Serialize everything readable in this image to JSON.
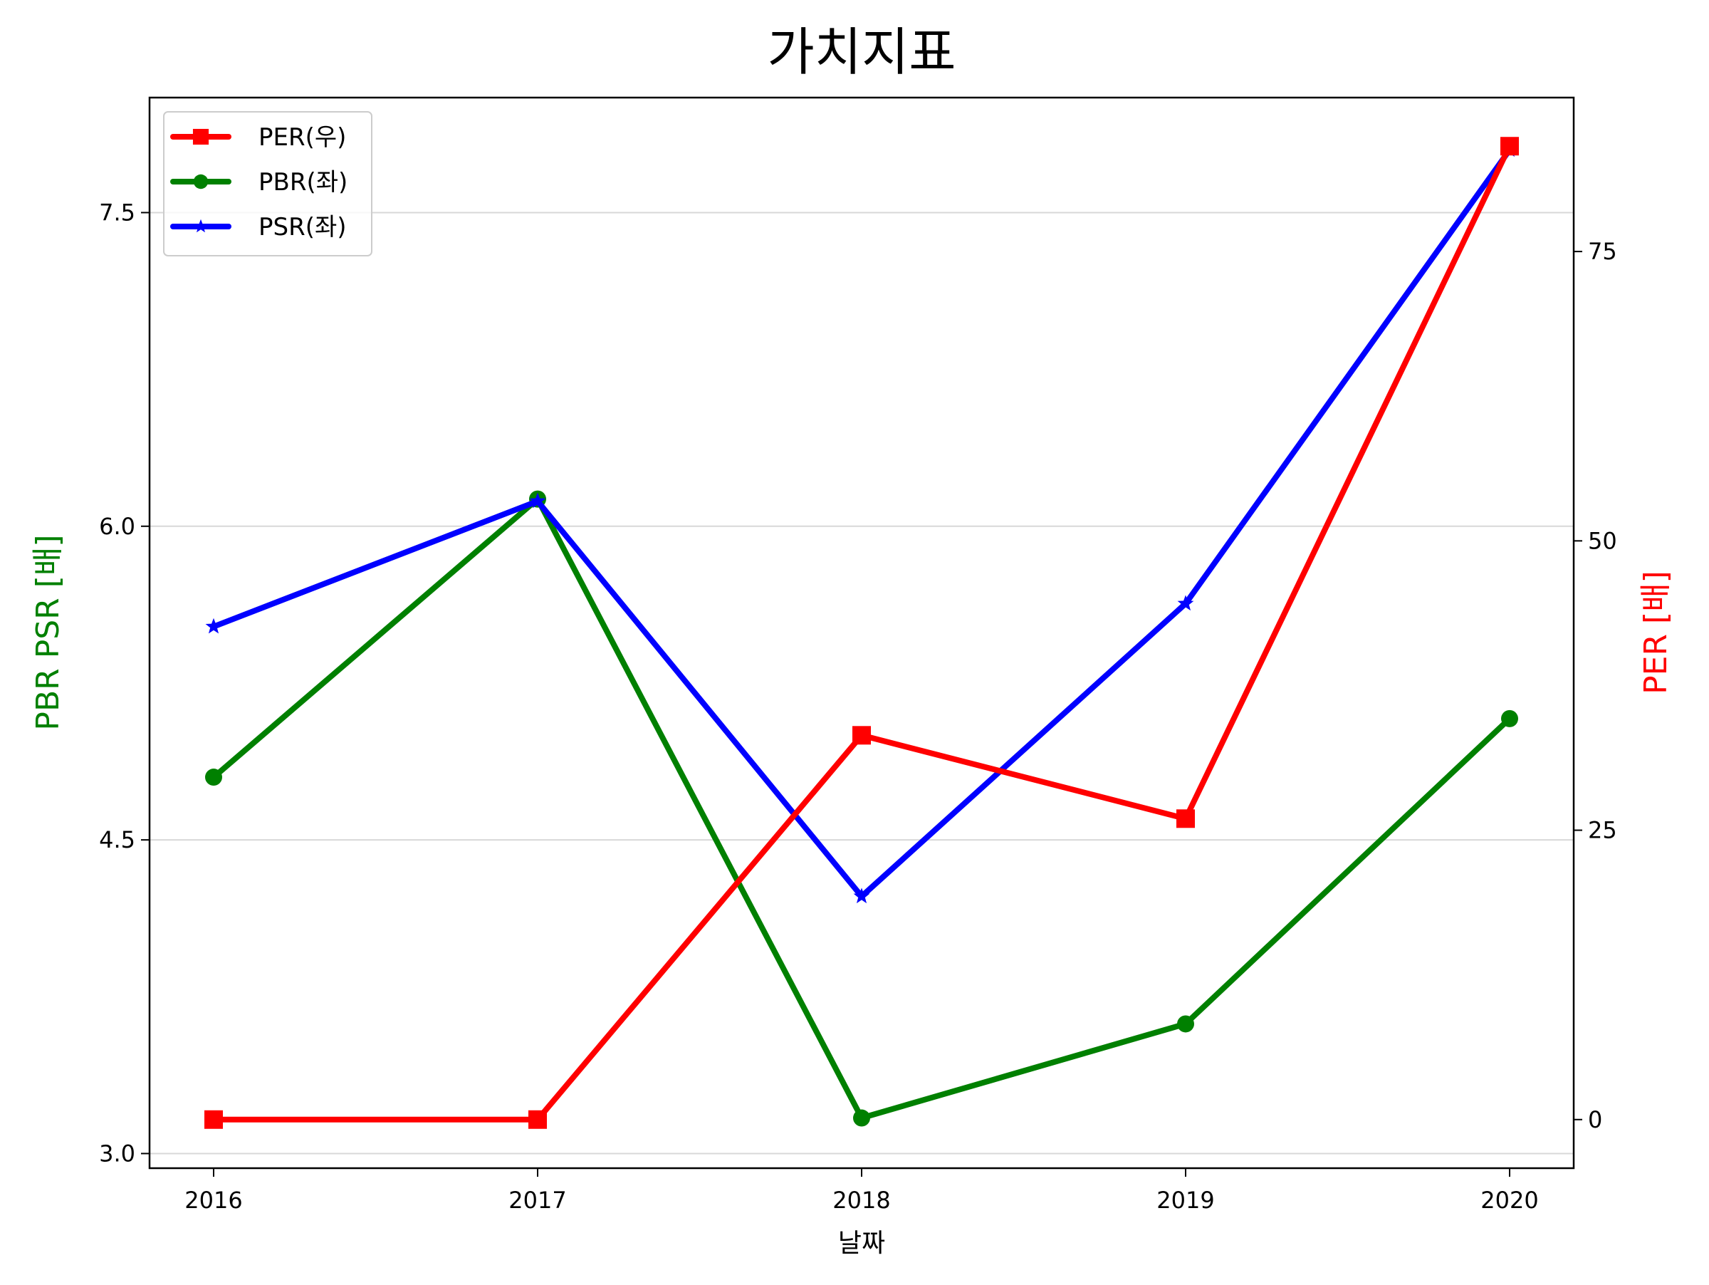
{
  "chart_data": {
    "type": "line",
    "title": "가치지표",
    "xlabel": "날짜",
    "ylabel_left": "PBR PSR [배]",
    "ylabel_right": "PER [배]",
    "categories": [
      "2016",
      "2017",
      "2018",
      "2019",
      "2020"
    ],
    "y_left": {
      "ticks": [
        "3.0",
        "4.5",
        "6.0",
        "7.5"
      ],
      "tick_values": [
        3.0,
        4.5,
        6.0,
        7.5
      ],
      "ylim": [
        2.93,
        8.05
      ],
      "grid": true
    },
    "y_right": {
      "ticks": [
        "0",
        "25",
        "50",
        "75"
      ],
      "tick_values": [
        0,
        25,
        50,
        75
      ],
      "ylim": [
        -4.2,
        88.3
      ]
    },
    "legend_position": "top-left",
    "series": [
      {
        "name": "PER(우)",
        "axis": "right",
        "color": "#ff0000",
        "marker": "square",
        "values": [
          0,
          0,
          33.2,
          26.0,
          84.1
        ]
      },
      {
        "name": "PBR(좌)",
        "axis": "left",
        "color": "#008000",
        "marker": "circle",
        "values": [
          4.8,
          6.13,
          3.17,
          3.62,
          5.08
        ]
      },
      {
        "name": "PSR(좌)",
        "axis": "left",
        "color": "#0000ff",
        "marker": "star",
        "values": [
          5.52,
          6.12,
          4.23,
          5.63,
          7.8
        ]
      }
    ]
  }
}
